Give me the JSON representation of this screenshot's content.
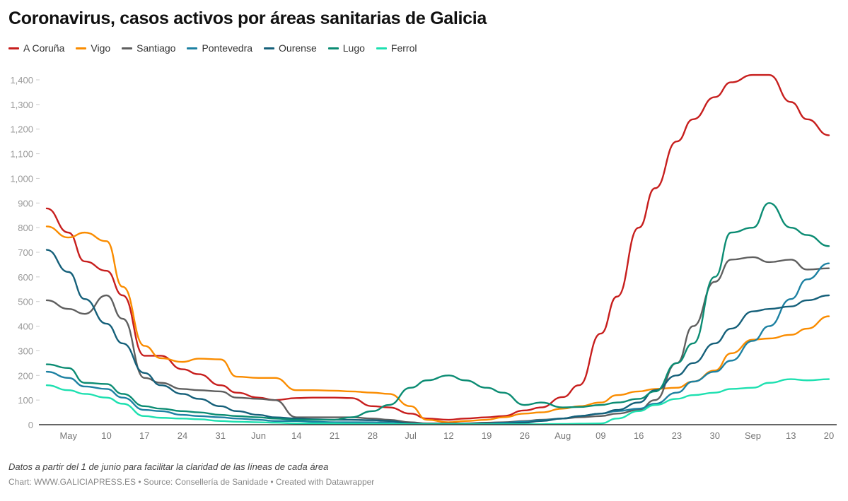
{
  "chart_data": {
    "type": "line",
    "title": "Coronavirus, casos activos por áreas sanitarias de Galicia",
    "xlabel": "",
    "ylabel": "",
    "ylim": [
      0,
      1400
    ],
    "yticks": [
      0,
      100,
      200,
      300,
      400,
      500,
      600,
      700,
      800,
      900,
      1000,
      1100,
      1200,
      1300,
      1400
    ],
    "ytick_labels": [
      "0",
      "100",
      "200",
      "300",
      "400",
      "500",
      "600",
      "700",
      "800",
      "900",
      "1,000",
      "1,100",
      "1,200",
      "1,300",
      "1,400"
    ],
    "xticks": [
      {
        "date": "2021-05-03",
        "label": "May"
      },
      {
        "date": "2021-05-10",
        "label": "10"
      },
      {
        "date": "2021-05-17",
        "label": "17"
      },
      {
        "date": "2021-05-24",
        "label": "24"
      },
      {
        "date": "2021-05-31",
        "label": "31"
      },
      {
        "date": "2021-06-07",
        "label": "Jun"
      },
      {
        "date": "2021-06-14",
        "label": "14"
      },
      {
        "date": "2021-06-21",
        "label": "21"
      },
      {
        "date": "2021-06-28",
        "label": "28"
      },
      {
        "date": "2021-07-05",
        "label": "Jul"
      },
      {
        "date": "2021-07-12",
        "label": "12"
      },
      {
        "date": "2021-07-19",
        "label": "19"
      },
      {
        "date": "2021-07-26",
        "label": "26"
      },
      {
        "date": "2021-08-02",
        "label": "Aug"
      },
      {
        "date": "2021-08-09",
        "label": "09"
      },
      {
        "date": "2021-08-16",
        "label": "16"
      },
      {
        "date": "2021-08-23",
        "label": "23"
      },
      {
        "date": "2021-08-30",
        "label": "30"
      },
      {
        "date": "2021-09-06",
        "label": "Sep"
      },
      {
        "date": "2021-09-13",
        "label": "13"
      },
      {
        "date": "2021-09-20",
        "label": "20"
      }
    ],
    "grid": false,
    "legend_position": "top-left",
    "x": [
      "2021-04-29",
      "2021-05-03",
      "2021-05-06",
      "2021-05-10",
      "2021-05-13",
      "2021-05-17",
      "2021-05-20",
      "2021-05-24",
      "2021-05-27",
      "2021-05-31",
      "2021-06-03",
      "2021-06-07",
      "2021-06-10",
      "2021-06-14",
      "2021-06-17",
      "2021-06-21",
      "2021-06-24",
      "2021-06-28",
      "2021-07-01",
      "2021-07-05",
      "2021-07-08",
      "2021-07-12",
      "2021-07-15",
      "2021-07-19",
      "2021-07-22",
      "2021-07-26",
      "2021-07-29",
      "2021-08-02",
      "2021-08-05",
      "2021-08-09",
      "2021-08-12",
      "2021-08-16",
      "2021-08-19",
      "2021-08-23",
      "2021-08-26",
      "2021-08-30",
      "2021-09-02",
      "2021-09-06",
      "2021-09-09",
      "2021-09-13",
      "2021-09-16",
      "2021-09-20"
    ],
    "series": [
      {
        "name": "A Coruña",
        "color": "#c71e1d",
        "values": [
          878,
          780,
          663,
          625,
          525,
          280,
          280,
          225,
          205,
          160,
          130,
          110,
          100,
          108,
          110,
          110,
          108,
          75,
          70,
          45,
          25,
          20,
          25,
          30,
          35,
          58,
          70,
          112,
          160,
          370,
          520,
          800,
          960,
          1150,
          1240,
          1330,
          1390,
          1420,
          1420,
          1310,
          1240,
          1175
        ]
      },
      {
        "name": "Vigo",
        "color": "#fa8c00",
        "values": [
          805,
          760,
          780,
          745,
          560,
          320,
          270,
          255,
          268,
          265,
          195,
          190,
          190,
          140,
          140,
          138,
          135,
          130,
          125,
          75,
          20,
          10,
          15,
          20,
          30,
          45,
          50,
          65,
          75,
          90,
          120,
          135,
          145,
          150,
          175,
          220,
          290,
          345,
          350,
          365,
          390,
          440
        ]
      },
      {
        "name": "Santiago",
        "color": "#5f5f5f",
        "values": [
          505,
          470,
          450,
          525,
          430,
          190,
          170,
          145,
          140,
          135,
          110,
          105,
          100,
          30,
          30,
          30,
          30,
          25,
          20,
          10,
          5,
          5,
          5,
          8,
          10,
          15,
          20,
          25,
          30,
          35,
          45,
          60,
          100,
          250,
          400,
          580,
          670,
          680,
          660,
          670,
          630,
          635
        ]
      },
      {
        "name": "Pontevedra",
        "color": "#1d81a2",
        "values": [
          215,
          190,
          155,
          145,
          110,
          60,
          55,
          40,
          35,
          30,
          25,
          20,
          15,
          15,
          12,
          10,
          10,
          10,
          8,
          3,
          2,
          2,
          3,
          5,
          8,
          12,
          18,
          25,
          35,
          45,
          55,
          65,
          85,
          130,
          175,
          215,
          260,
          340,
          400,
          510,
          590,
          655
        ]
      },
      {
        "name": "Ourense",
        "color": "#15607a",
        "values": [
          710,
          620,
          510,
          410,
          330,
          210,
          160,
          125,
          105,
          75,
          55,
          40,
          30,
          25,
          22,
          20,
          20,
          18,
          15,
          5,
          3,
          3,
          3,
          5,
          5,
          8,
          15,
          25,
          35,
          45,
          60,
          90,
          140,
          200,
          250,
          330,
          390,
          460,
          470,
          480,
          505,
          525
        ]
      },
      {
        "name": "Lugo",
        "color": "#0b8c73",
        "values": [
          245,
          230,
          170,
          165,
          125,
          75,
          65,
          55,
          50,
          40,
          35,
          30,
          25,
          20,
          20,
          20,
          30,
          55,
          80,
          150,
          180,
          200,
          180,
          150,
          130,
          80,
          90,
          70,
          72,
          80,
          90,
          105,
          135,
          250,
          330,
          600,
          780,
          800,
          900,
          800,
          770,
          725
        ]
      },
      {
        "name": "Ferrol",
        "color": "#1de0b0",
        "values": [
          160,
          140,
          125,
          110,
          85,
          35,
          28,
          25,
          22,
          15,
          12,
          10,
          8,
          5,
          5,
          5,
          4,
          3,
          3,
          2,
          2,
          2,
          2,
          2,
          2,
          2,
          2,
          3,
          4,
          5,
          25,
          55,
          80,
          105,
          120,
          130,
          145,
          150,
          170,
          185,
          180,
          185
        ]
      }
    ]
  },
  "note": "Datos a partir del 1 de junio para facilitar la claridad de las líneas de cada área",
  "credits": "Chart: WWW.GALICIAPRESS.ES • Source: Consellería de Sanidade • Created with Datawrapper"
}
